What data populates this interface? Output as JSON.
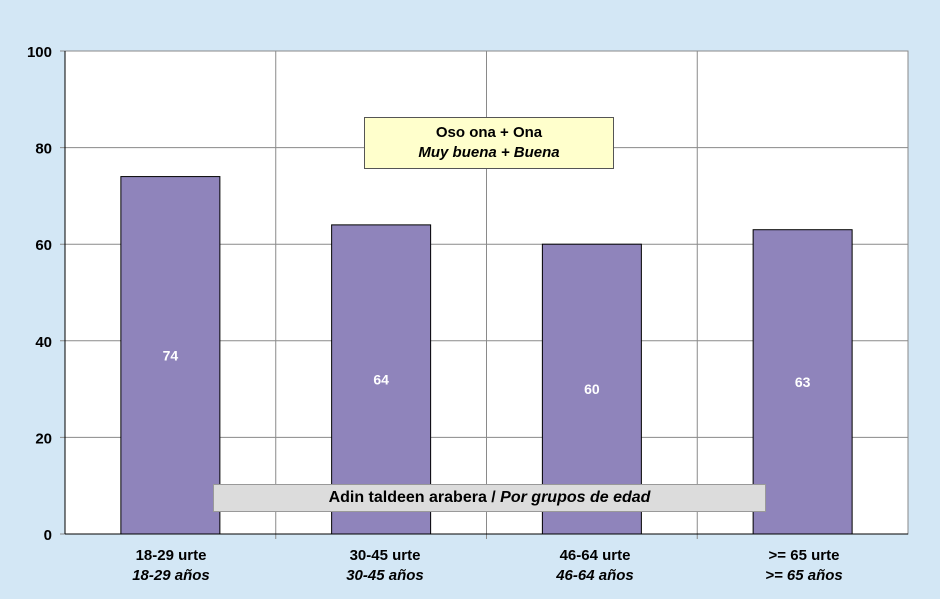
{
  "chart_data": {
    "type": "bar",
    "categories": [
      "18-29 urte",
      "30-45 urte",
      "46-64 urte",
      ">= 65 urte"
    ],
    "categories_es": [
      "18-29 años",
      "30-45 años",
      "46-64 años",
      ">= 65 años"
    ],
    "values": [
      74,
      64,
      60,
      63
    ],
    "data_labels": [
      "74",
      "64",
      "60",
      "63"
    ],
    "ylim": [
      0,
      100
    ],
    "yticks": [
      "0",
      "20",
      "40",
      "60",
      "80",
      "100"
    ],
    "grid": true,
    "legend": {
      "line1": "Oso ona + Ona",
      "line2": "Muy buena + Buena"
    },
    "subtitle": {
      "basque": "Adin taldeen arabera / ",
      "spanish": "Por grupos de edad"
    },
    "bar_color": "#8f84bb",
    "plot_bg": "#ffffff",
    "page_bg": "#d3e7f5"
  }
}
